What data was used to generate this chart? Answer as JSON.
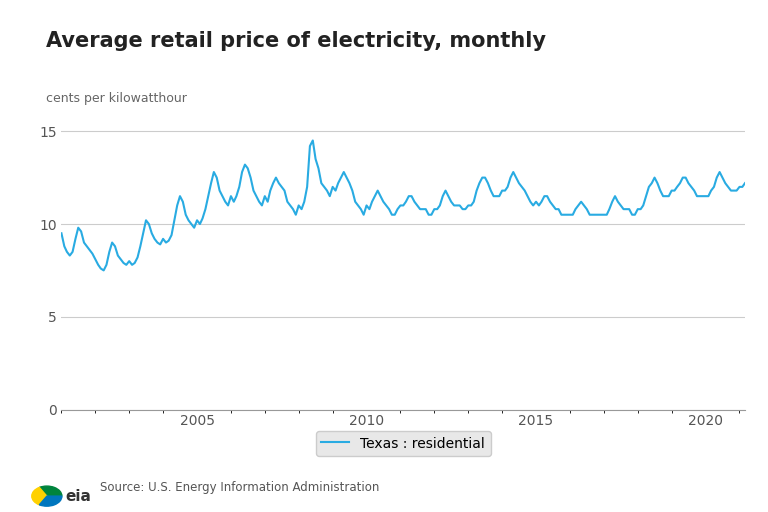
{
  "title": "Average retail price of electricity, monthly",
  "ylabel": "cents per kilowatthour",
  "line_color": "#29ABE2",
  "line_width": 1.5,
  "legend_label": "Texas : residential",
  "source_text": "Source: U.S. Energy Information Administration",
  "ylim": [
    0,
    16
  ],
  "yticks": [
    0,
    5,
    10,
    15
  ],
  "background_color": "#ffffff",
  "start_year": 2001,
  "start_month": 1,
  "values": [
    9.5,
    8.8,
    8.5,
    8.3,
    8.5,
    9.2,
    9.8,
    9.6,
    9.0,
    8.8,
    8.6,
    8.4,
    8.1,
    7.8,
    7.6,
    7.5,
    7.8,
    8.5,
    9.0,
    8.8,
    8.3,
    8.1,
    7.9,
    7.8,
    8.0,
    7.8,
    7.9,
    8.2,
    8.8,
    9.5,
    10.2,
    10.0,
    9.5,
    9.2,
    9.0,
    8.9,
    9.2,
    9.0,
    9.1,
    9.4,
    10.2,
    11.0,
    11.5,
    11.2,
    10.5,
    10.2,
    10.0,
    9.8,
    10.2,
    10.0,
    10.3,
    10.8,
    11.5,
    12.2,
    12.8,
    12.5,
    11.8,
    11.5,
    11.2,
    11.0,
    11.5,
    11.2,
    11.5,
    12.0,
    12.8,
    13.2,
    13.0,
    12.5,
    11.8,
    11.5,
    11.2,
    11.0,
    11.5,
    11.2,
    11.8,
    12.2,
    12.5,
    12.2,
    12.0,
    11.8,
    11.2,
    11.0,
    10.8,
    10.5,
    11.0,
    10.8,
    11.2,
    12.0,
    14.2,
    14.5,
    13.5,
    13.0,
    12.2,
    12.0,
    11.8,
    11.5,
    12.0,
    11.8,
    12.2,
    12.5,
    12.8,
    12.5,
    12.2,
    11.8,
    11.2,
    11.0,
    10.8,
    10.5,
    11.0,
    10.8,
    11.2,
    11.5,
    11.8,
    11.5,
    11.2,
    11.0,
    10.8,
    10.5,
    10.5,
    10.8,
    11.0,
    11.0,
    11.2,
    11.5,
    11.5,
    11.2,
    11.0,
    10.8,
    10.8,
    10.8,
    10.5,
    10.5,
    10.8,
    10.8,
    11.0,
    11.5,
    11.8,
    11.5,
    11.2,
    11.0,
    11.0,
    11.0,
    10.8,
    10.8,
    11.0,
    11.0,
    11.2,
    11.8,
    12.2,
    12.5,
    12.5,
    12.2,
    11.8,
    11.5,
    11.5,
    11.5,
    11.8,
    11.8,
    12.0,
    12.5,
    12.8,
    12.5,
    12.2,
    12.0,
    11.8,
    11.5,
    11.2,
    11.0,
    11.2,
    11.0,
    11.2,
    11.5,
    11.5,
    11.2,
    11.0,
    10.8,
    10.8,
    10.5,
    10.5,
    10.5,
    10.5,
    10.5,
    10.8,
    11.0,
    11.2,
    11.0,
    10.8,
    10.5,
    10.5,
    10.5,
    10.5,
    10.5,
    10.5,
    10.5,
    10.8,
    11.2,
    11.5,
    11.2,
    11.0,
    10.8,
    10.8,
    10.8,
    10.5,
    10.5,
    10.8,
    10.8,
    11.0,
    11.5,
    12.0,
    12.2,
    12.5,
    12.2,
    11.8,
    11.5,
    11.5,
    11.5,
    11.8,
    11.8,
    12.0,
    12.2,
    12.5,
    12.5,
    12.2,
    12.0,
    11.8,
    11.5,
    11.5,
    11.5,
    11.5,
    11.5,
    11.8,
    12.0,
    12.5,
    12.8,
    12.5,
    12.2,
    12.0,
    11.8,
    11.8,
    11.8,
    12.0,
    12.0,
    12.2
  ]
}
